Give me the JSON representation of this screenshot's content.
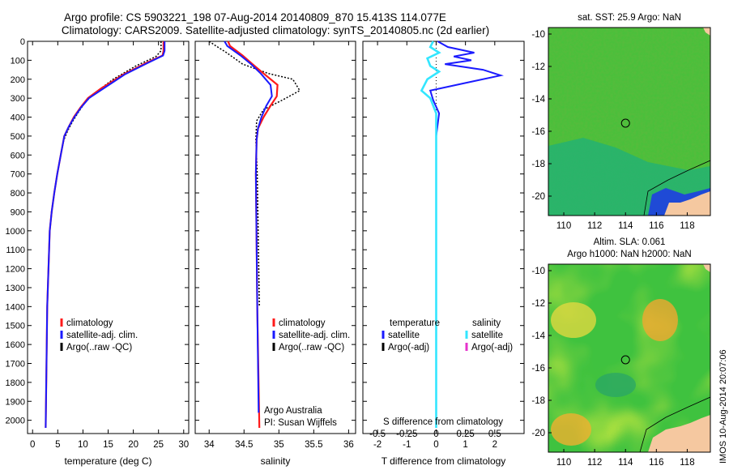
{
  "header": {
    "line1": "Argo profile: CS 5903221_198 07-Aug-2014 20140809_870 15.413S 114.077E",
    "line2": "Climatology: CARS2009. Satellite-adjusted climatology: synTS_20140805.nc (2d earlier)"
  },
  "colors": {
    "climatology": "#ff1a1a",
    "satellite": "#1a1aff",
    "argo": "#000000",
    "sal_satellite": "#33e6ff",
    "sal_argo": "#e633cc",
    "land": "#f5c8a0",
    "ocean_green": "#3fc23f"
  },
  "chart_data": [
    {
      "type": "line",
      "xlabel": "temperature (deg C)",
      "xlim": [
        -1,
        31
      ],
      "ylim": [
        2070,
        0
      ],
      "xticks": [
        0,
        5,
        10,
        15,
        20,
        25,
        30
      ],
      "yticks": [
        0,
        100,
        200,
        300,
        400,
        500,
        600,
        700,
        800,
        900,
        1000,
        1100,
        1200,
        1300,
        1400,
        1500,
        1600,
        1700,
        1800,
        1900,
        2000
      ],
      "legend": [
        "climatology",
        "satellite-adj. clim.",
        "Argo(..raw -QC)"
      ],
      "series": [
        {
          "name": "climatology",
          "x": [
            26.0,
            26.0,
            25.8,
            22.5,
            18.0,
            13.5,
            11.0,
            9.5,
            8.2,
            7.2,
            6.3,
            5.6,
            4.9,
            4.3,
            3.8,
            3.4,
            2.9,
            2.6
          ],
          "y": [
            0,
            50,
            75,
            115,
            175,
            250,
            300,
            350,
            400,
            450,
            500,
            600,
            700,
            800,
            900,
            1000,
            1400,
            2040
          ]
        },
        {
          "name": "satellite-adj. clim.",
          "x": [
            26.2,
            26.2,
            25.9,
            22.8,
            18.3,
            14.0,
            11.2,
            9.6,
            8.3,
            7.2,
            6.3,
            5.6,
            4.9,
            4.3,
            3.8,
            3.4,
            2.9,
            2.6
          ],
          "y": [
            0,
            50,
            75,
            115,
            175,
            250,
            300,
            350,
            400,
            450,
            500,
            600,
            700,
            800,
            900,
            1000,
            1400,
            2040
          ]
        },
        {
          "name": "Argo(..raw -QC)",
          "x": [
            25.5,
            25.5,
            24.5,
            20.5,
            16.0,
            12.5,
            10.5,
            9.2,
            8.0,
            7.0,
            6.2,
            5.6,
            4.9,
            4.3,
            3.8,
            3.4,
            2.9,
            2.6
          ],
          "y": [
            0,
            50,
            80,
            130,
            200,
            270,
            320,
            370,
            420,
            470,
            520,
            600,
            700,
            800,
            900,
            1000,
            1400,
            2040
          ]
        }
      ]
    },
    {
      "type": "line",
      "xlabel": "salinity",
      "xlim": [
        33.8,
        36.1
      ],
      "ylim": [
        2070,
        0
      ],
      "xticks": [
        34,
        34.5,
        35,
        35.5,
        36
      ],
      "legend": [
        "climatology",
        "satellite-adj. clim.",
        "Argo(..raw -QC)"
      ],
      "annotations": [
        "Argo Australia",
        "PI: Susan Wijffels"
      ],
      "series": [
        {
          "name": "climatology",
          "x": [
            34.27,
            34.3,
            34.48,
            34.62,
            34.78,
            34.98,
            34.97,
            34.88,
            34.78,
            34.7,
            34.68,
            34.67,
            34.69,
            34.72
          ],
          "y": [
            0,
            25,
            75,
            120,
            170,
            230,
            290,
            340,
            400,
            460,
            520,
            700,
            1400,
            2040
          ]
        },
        {
          "name": "satellite-adj. clim.",
          "x": [
            34.22,
            34.26,
            34.45,
            34.6,
            34.74,
            34.88,
            34.9,
            34.82,
            34.75,
            34.7,
            34.68,
            34.67,
            34.69,
            34.71
          ],
          "y": [
            0,
            25,
            75,
            120,
            170,
            230,
            290,
            340,
            400,
            460,
            520,
            700,
            1400,
            1960
          ]
        },
        {
          "name": "Argo(..raw -QC)",
          "x": [
            34.0,
            34.1,
            34.25,
            34.48,
            34.85,
            35.2,
            35.3,
            35.05,
            34.78,
            34.68,
            34.67,
            34.69,
            34.72
          ],
          "y": [
            0,
            25,
            60,
            120,
            170,
            200,
            260,
            310,
            360,
            420,
            520,
            700,
            1400
          ]
        }
      ]
    },
    {
      "type": "line",
      "xlabel": "T difference from climatology",
      "title2": "S difference from climatology",
      "xlim": [
        -2.5,
        3.0
      ],
      "ylim": [
        2070,
        0
      ],
      "xticks": [
        -2,
        -1,
        0,
        1,
        2
      ],
      "top_ticks": [
        "-0.5",
        "-0.25",
        "0",
        "0.25",
        "0.5"
      ],
      "legend_left_title": "temperature",
      "legend_right_title": "salinity",
      "legend": [
        "satellite",
        "Argo(-adj)",
        "satellite",
        "Argo(-adj)"
      ],
      "series": [
        {
          "name": "T satellite",
          "x": [
            0.05,
            0.4,
            1.3,
            0.6,
            1.2,
            0.3,
            1.6,
            2.2,
            1.0,
            -0.2,
            -0.1,
            0.1,
            0.0,
            0.0,
            0.0
          ],
          "y": [
            0,
            30,
            60,
            80,
            100,
            120,
            150,
            180,
            220,
            260,
            310,
            380,
            500,
            1000,
            2040
          ]
        },
        {
          "name": "S satellite",
          "x": [
            -0.1,
            -0.2,
            0.1,
            -0.3,
            -0.2,
            0.1,
            -0.3,
            -0.5,
            -0.2,
            0.0,
            0.0,
            0.0,
            0.0
          ],
          "y": [
            0,
            30,
            60,
            90,
            130,
            160,
            200,
            260,
            300,
            380,
            500,
            1000,
            2040
          ]
        }
      ]
    },
    {
      "type": "heatmap",
      "title": "sat. SST: 25.9  Argo: NaN",
      "xlim": [
        109,
        119.5
      ],
      "ylim": [
        -21.2,
        -9.6
      ],
      "xticks": [
        110,
        112,
        114,
        116,
        118
      ],
      "yticks": [
        -10,
        -12,
        -14,
        -16,
        -18,
        -20
      ],
      "marker": [
        114.0,
        -15.5
      ]
    },
    {
      "type": "heatmap",
      "title": "Altim. SLA: 0.061",
      "subtitle": "Argo h1000: NaN h2000: NaN",
      "xlim": [
        109,
        119.5
      ],
      "ylim": [
        -21.2,
        -9.6
      ],
      "xticks": [
        110,
        112,
        114,
        116,
        118
      ],
      "yticks": [
        -10,
        -12,
        -14,
        -16,
        -18,
        -20
      ],
      "marker": [
        114.0,
        -15.5
      ]
    }
  ],
  "side_text": "IMOS 10-Aug-2014 20:07:06"
}
